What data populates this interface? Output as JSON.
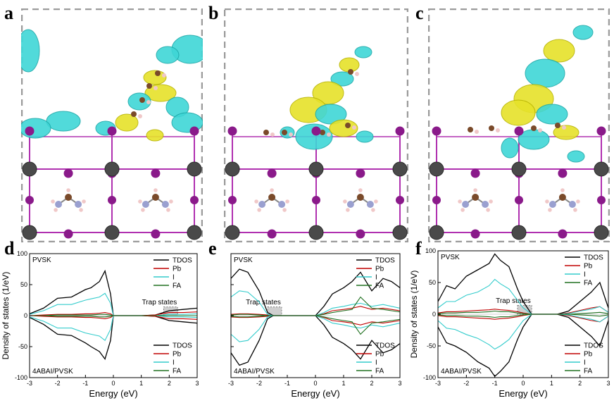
{
  "panels": {
    "a": "a",
    "b": "b",
    "c": "c",
    "d": "d",
    "e": "e",
    "f": "f"
  },
  "dos_panels": [
    {
      "id": "d",
      "ylabel": "Density of states (1/eV)",
      "xlabel": "Energy (eV)",
      "top_label": "PVSK",
      "bottom_label": "4ABAI/PVSK",
      "trap_label": "Trap states",
      "x_ticks": [
        "-3",
        "-2",
        "-1",
        "0",
        "1",
        "2",
        "3"
      ],
      "y_ticks": [
        "100",
        "50",
        "0",
        "-50",
        "-100"
      ],
      "legend_top": [
        "TDOS",
        "Pb",
        "I",
        "FA"
      ],
      "legend_bottom": [
        "TDOS",
        "Pb",
        "I",
        "FA"
      ]
    },
    {
      "id": "e",
      "ylabel": "",
      "xlabel": "Energy (eV)",
      "top_label": "PVSK",
      "bottom_label": "4ABAI/PVSK",
      "trap_label": "Trap states",
      "x_ticks": [
        "-3",
        "-2",
        "-1",
        "0",
        "1",
        "2",
        "3"
      ],
      "y_ticks": [],
      "legend_top": [
        "TDOS",
        "Pb",
        "I",
        "FA"
      ],
      "legend_bottom": [
        "TDOS",
        "Pb",
        "I",
        "FA"
      ]
    },
    {
      "id": "f",
      "ylabel": "Density of states (1/eV)",
      "xlabel": "Energy (eV)",
      "top_label": "PVSK",
      "bottom_label": "4ABAI/PVSK",
      "trap_label": "Trap states",
      "x_ticks": [
        "-3",
        "-2",
        "-1",
        "0",
        "1",
        "2",
        "3"
      ],
      "y_ticks": [
        "100",
        "50",
        "0",
        "-50",
        "-100"
      ],
      "legend_top": [
        "TDOS",
        "Pb",
        "I",
        "FA"
      ],
      "legend_bottom": [
        "TDOS",
        "Pb",
        "I",
        "FA"
      ]
    }
  ],
  "colors": {
    "TDOS": "#000000",
    "Pb": "#c00000",
    "I": "#33cccc",
    "FA": "#207020",
    "lobe_cyan": "#3fd6d6",
    "lobe_yellow": "#e6e22a",
    "atom_pb": "#4a4a4a",
    "atom_i": "#8a1a8a",
    "bond": "#b030b0",
    "trap_fill": "#cfcfcf"
  },
  "chart_data": [
    {
      "type": "line",
      "panel": "d",
      "xlabel": "Energy (eV)",
      "ylabel": "Density of states (1/eV)",
      "xlim": [
        -3,
        3
      ],
      "ylim": [
        -100,
        100
      ],
      "x": [
        -3.0,
        -2.5,
        -2.0,
        -1.5,
        -1.0,
        -0.8,
        -0.5,
        -0.3,
        -0.1,
        0.0,
        0.5,
        1.0,
        1.5,
        2.0,
        2.5,
        3.0
      ],
      "series": [
        {
          "name": "TDOS",
          "values": [
            3,
            12,
            28,
            30,
            42,
            45,
            55,
            72,
            35,
            0,
            0,
            0,
            1,
            8,
            10,
            12
          ]
        },
        {
          "name": "Pb",
          "values": [
            0,
            1,
            2,
            2,
            3,
            3,
            4,
            5,
            3,
            0,
            0,
            0,
            1,
            5,
            5,
            6
          ]
        },
        {
          "name": "I",
          "values": [
            2,
            8,
            18,
            18,
            25,
            27,
            30,
            36,
            20,
            0,
            0,
            0,
            0,
            2,
            2,
            3
          ]
        },
        {
          "name": "FA",
          "values": [
            0,
            0,
            1,
            1,
            1,
            1,
            2,
            2,
            1,
            0,
            0,
            0,
            0,
            0,
            0,
            0
          ]
        },
        {
          "name": "TDOS",
          "values": [
            -3,
            -14,
            -30,
            -32,
            -44,
            -50,
            -58,
            -70,
            -40,
            0,
            0,
            0,
            -1,
            -8,
            -10,
            -12
          ]
        },
        {
          "name": "Pb",
          "values": [
            0,
            -1,
            -2,
            -2,
            -3,
            -3,
            -4,
            -5,
            -3,
            0,
            0,
            0,
            -1,
            -5,
            -5,
            -6
          ]
        },
        {
          "name": "I",
          "values": [
            -2,
            -9,
            -20,
            -20,
            -28,
            -30,
            -33,
            -40,
            -22,
            0,
            0,
            0,
            0,
            -2,
            -2,
            -3
          ]
        },
        {
          "name": "FA",
          "values": [
            0,
            0,
            -1,
            -1,
            -1,
            -1,
            -2,
            -2,
            -1,
            0,
            0,
            0,
            0,
            0,
            0,
            0
          ]
        }
      ],
      "trap_x": [
        1.8,
        2.3
      ]
    },
    {
      "type": "line",
      "panel": "e",
      "xlabel": "Energy (eV)",
      "ylabel": "",
      "xlim": [
        -3,
        3
      ],
      "ylim": [
        -100,
        100
      ],
      "x": [
        -3.0,
        -2.7,
        -2.4,
        -2.0,
        -1.7,
        -1.5,
        -1.2,
        -0.5,
        0.0,
        0.3,
        0.6,
        1.0,
        1.3,
        1.6,
        2.0,
        2.4,
        2.7,
        3.0
      ],
      "series": [
        {
          "name": "TDOS",
          "values": [
            60,
            75,
            70,
            40,
            5,
            0,
            0,
            0,
            0,
            15,
            35,
            45,
            55,
            70,
            40,
            60,
            55,
            45
          ]
        },
        {
          "name": "Pb",
          "values": [
            2,
            3,
            3,
            2,
            1,
            0,
            0,
            0,
            0,
            3,
            8,
            10,
            12,
            15,
            10,
            12,
            10,
            8
          ]
        },
        {
          "name": "I",
          "values": [
            30,
            40,
            38,
            22,
            2,
            0,
            0,
            0,
            0,
            5,
            12,
            15,
            18,
            20,
            15,
            18,
            15,
            12
          ]
        },
        {
          "name": "FA",
          "values": [
            1,
            2,
            2,
            1,
            0,
            0,
            0,
            0,
            0,
            2,
            5,
            8,
            10,
            30,
            12,
            10,
            8,
            6
          ]
        },
        {
          "name": "TDOS",
          "values": [
            -60,
            -80,
            -75,
            -40,
            -5,
            0,
            0,
            0,
            0,
            -15,
            -35,
            -45,
            -55,
            -70,
            -40,
            -60,
            -55,
            -45
          ]
        },
        {
          "name": "Pb",
          "values": [
            -2,
            -3,
            -3,
            -2,
            -1,
            0,
            0,
            0,
            0,
            -3,
            -8,
            -10,
            -12,
            -15,
            -10,
            -12,
            -10,
            -8
          ]
        },
        {
          "name": "I",
          "values": [
            -30,
            -42,
            -40,
            -22,
            -2,
            0,
            0,
            0,
            0,
            -5,
            -12,
            -15,
            -18,
            -20,
            -15,
            -18,
            -15,
            -12
          ]
        },
        {
          "name": "FA",
          "values": [
            -1,
            -2,
            -2,
            -1,
            0,
            0,
            0,
            0,
            0,
            -2,
            -5,
            -8,
            -10,
            -30,
            -12,
            -10,
            -8,
            -6
          ]
        }
      ],
      "trap_x": [
        -1.7,
        -1.2
      ]
    },
    {
      "type": "line",
      "panel": "f",
      "xlabel": "Energy (eV)",
      "ylabel": "Density of states (1/eV)",
      "xlim": [
        -3,
        3
      ],
      "ylim": [
        -100,
        100
      ],
      "x": [
        -3.0,
        -2.7,
        -2.4,
        -2.0,
        -1.6,
        -1.2,
        -1.0,
        -0.8,
        -0.5,
        -0.2,
        0.0,
        0.3,
        0.8,
        1.2,
        1.6,
        2.0,
        2.4,
        2.7,
        3.0
      ],
      "series": [
        {
          "name": "TDOS",
          "values": [
            20,
            45,
            40,
            60,
            70,
            80,
            95,
            85,
            75,
            40,
            20,
            0,
            0,
            0,
            5,
            20,
            35,
            50,
            10
          ]
        },
        {
          "name": "Pb",
          "values": [
            2,
            4,
            4,
            5,
            6,
            7,
            8,
            7,
            6,
            4,
            2,
            0,
            0,
            0,
            2,
            6,
            10,
            12,
            3
          ]
        },
        {
          "name": "I",
          "values": [
            10,
            20,
            20,
            30,
            35,
            45,
            55,
            48,
            40,
            22,
            10,
            0,
            0,
            0,
            1,
            5,
            8,
            12,
            3
          ]
        },
        {
          "name": "FA",
          "values": [
            1,
            2,
            2,
            3,
            3,
            4,
            5,
            4,
            4,
            2,
            1,
            0,
            0,
            0,
            0,
            1,
            2,
            3,
            1
          ]
        },
        {
          "name": "TDOS",
          "values": [
            -20,
            -45,
            -50,
            -60,
            -75,
            -85,
            -98,
            -90,
            -75,
            -40,
            -20,
            0,
            0,
            0,
            -5,
            -20,
            -35,
            -50,
            -10
          ]
        },
        {
          "name": "Pb",
          "values": [
            -2,
            -4,
            -4,
            -5,
            -6,
            -7,
            -8,
            -7,
            -6,
            -4,
            -2,
            0,
            0,
            0,
            -2,
            -6,
            -10,
            -12,
            -3
          ]
        },
        {
          "name": "I",
          "values": [
            -10,
            -22,
            -24,
            -32,
            -38,
            -48,
            -55,
            -50,
            -40,
            -22,
            -10,
            0,
            0,
            0,
            -1,
            -5,
            -8,
            -12,
            -3
          ]
        },
        {
          "name": "FA",
          "values": [
            -1,
            -2,
            -2,
            -3,
            -3,
            -4,
            -5,
            -4,
            -4,
            -2,
            -1,
            0,
            0,
            0,
            0,
            -1,
            -2,
            -3,
            -1
          ]
        }
      ],
      "trap_x": [
        -0.2,
        0.3
      ]
    }
  ]
}
